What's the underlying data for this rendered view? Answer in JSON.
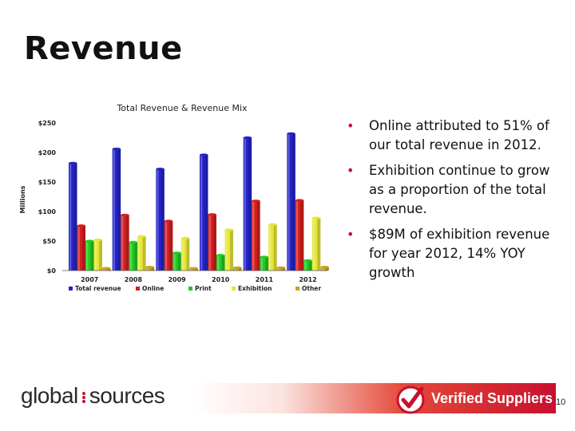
{
  "slide": {
    "title": "Revenue",
    "page_number": "10"
  },
  "bullets": [
    "Online attributed to 51% of our total revenue in 2012.",
    "Exhibition continue to grow as a proportion of the total revenue.",
    "$89M of exhibition revenue for year 2012, 14% YOY growth"
  ],
  "footer": {
    "logo_part1": "global",
    "logo_part2": "sources",
    "verified_label": "Verified Suppliers"
  },
  "colors": {
    "total": "#2323c8",
    "online": "#d41f1f",
    "print": "#22cc22",
    "exhibition": "#e6e63a",
    "other": "#c9a227",
    "bullet": "#c8102e"
  },
  "chart_data": {
    "type": "bar",
    "title": "Total Revenue & Revenue Mix",
    "ylabel": "Millions",
    "xlabel": "",
    "ylim": [
      0,
      250
    ],
    "yticks": [
      0,
      50,
      100,
      150,
      200,
      250
    ],
    "ytick_labels": [
      "$0",
      "$50",
      "$100",
      "$150",
      "$200",
      "$250"
    ],
    "categories": [
      "2007",
      "2008",
      "2009",
      "2010",
      "2011",
      "2012"
    ],
    "legend_position": "bottom",
    "series": [
      {
        "name": "Total revenue",
        "color": "#2323c8",
        "values": [
          182,
          206,
          172,
          196,
          225,
          232
        ]
      },
      {
        "name": "Online",
        "color": "#d41f1f",
        "values": [
          76,
          94,
          84,
          95,
          118,
          119
        ]
      },
      {
        "name": "Print",
        "color": "#22cc22",
        "values": [
          50,
          48,
          30,
          26,
          23,
          17
        ]
      },
      {
        "name": "Exhibition",
        "color": "#e6e63a",
        "values": [
          52,
          58,
          55,
          69,
          78,
          89
        ]
      },
      {
        "name": "Other",
        "color": "#c9a227",
        "values": [
          4,
          6,
          4,
          5,
          5,
          6
        ]
      }
    ]
  }
}
